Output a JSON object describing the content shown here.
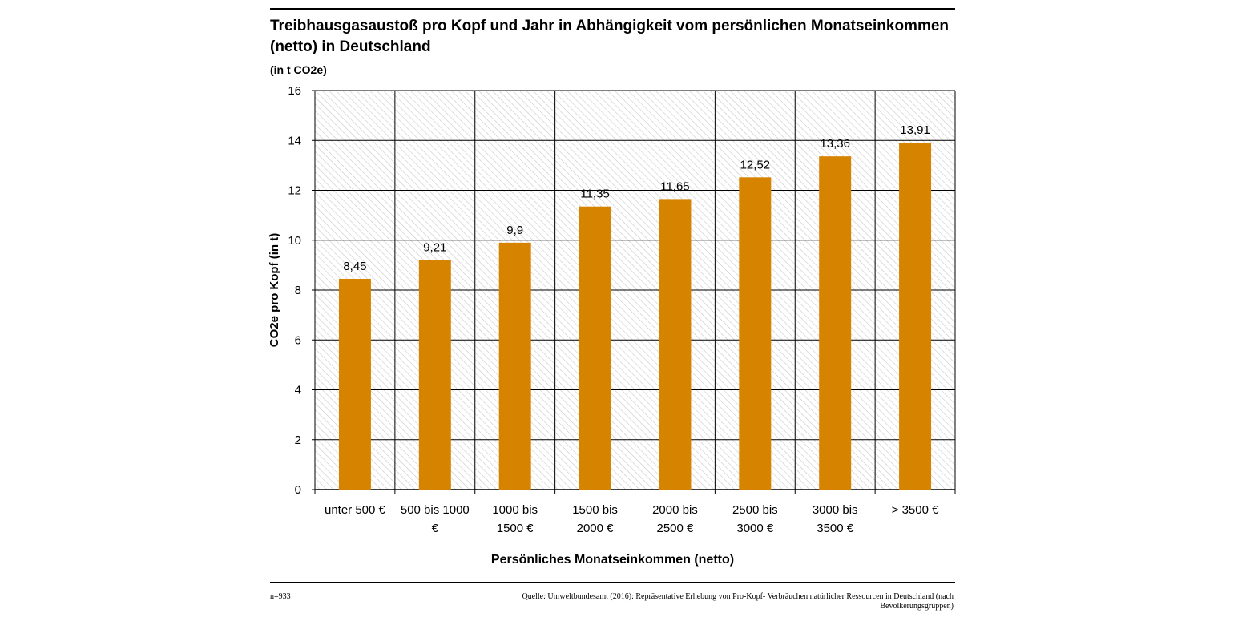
{
  "title": "Treibhausgasaustoß pro Kopf und Jahr in Abhängigkeit vom persönlichen Monatseinkommen (netto) in Deutschland",
  "unit_note": "(in t CO2e)",
  "footer": {
    "sample": "n=933",
    "source": "Quelle: Umweltbundesamt (2016): Repräsentative Erhebung von Pro-Kopf- Verbräuchen natürlicher Ressourcen in Deutschland (nach Bevölkerungsgruppen)"
  },
  "colors": {
    "bar": "#d68400",
    "grid": "#000000",
    "hatch": "#c8c8c8"
  },
  "chart_data": {
    "type": "bar",
    "title": "Treibhausgasaustoß pro Kopf und Jahr in Abhängigkeit vom persönlichen Monatseinkommen (netto) in Deutschland",
    "xlabel": "Persönliches Monatseinkommen (netto)",
    "ylabel": "CO2e pro Kopf (in t)",
    "ylim": [
      0,
      16
    ],
    "yticks": [
      0,
      2,
      4,
      6,
      8,
      10,
      12,
      14,
      16
    ],
    "grid": true,
    "categories": [
      [
        "unter 500 €"
      ],
      [
        "500 bis 1000",
        "€"
      ],
      [
        "1000 bis",
        "1500 €"
      ],
      [
        "1500 bis",
        "2000 €"
      ],
      [
        "2000 bis",
        "2500 €"
      ],
      [
        "2500 bis",
        "3000 €"
      ],
      [
        "3000 bis",
        "3500 €"
      ],
      [
        "> 3500 €"
      ]
    ],
    "values": [
      8.45,
      9.21,
      9.9,
      11.35,
      11.65,
      12.52,
      13.36,
      13.91
    ],
    "data_labels": [
      "8,45",
      "9,21",
      "9,9",
      "11,35",
      "11,65",
      "12,52",
      "13,36",
      "13,91"
    ]
  }
}
